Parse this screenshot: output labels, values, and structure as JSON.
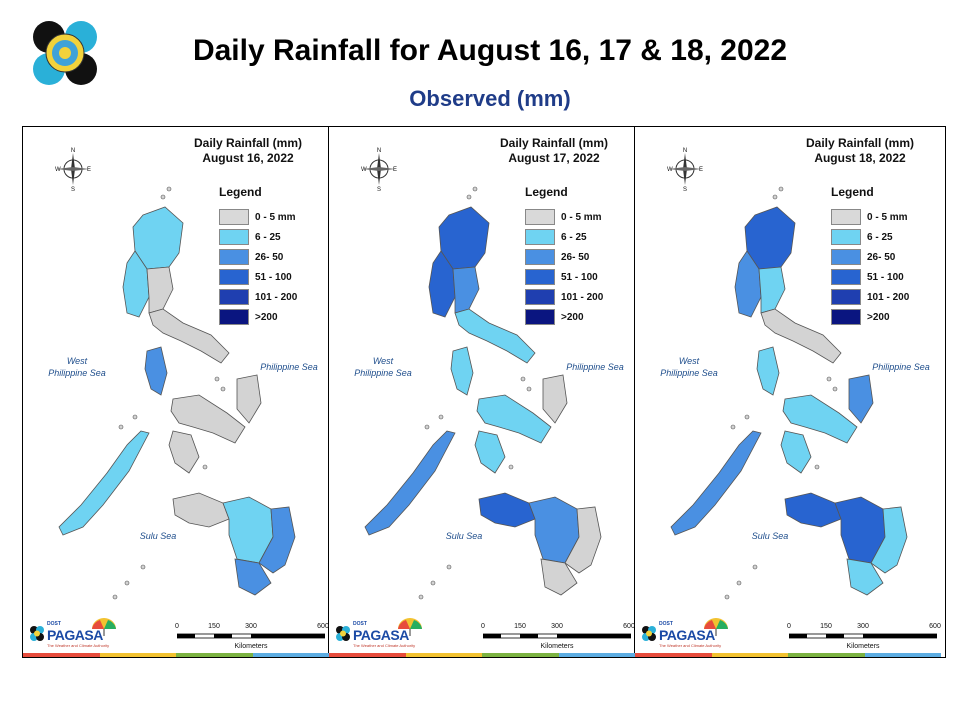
{
  "header": {
    "title": "Daily Rainfall for August 16, 17 & 18, 2022",
    "subtitle": "Observed (mm)"
  },
  "colors": {
    "title": "#000000",
    "subtitle": "#1f3c88",
    "land_default": "#d3d3d3",
    "land_border": "#555555"
  },
  "legend": {
    "title": "Legend",
    "items": [
      {
        "label": "0 - 5 mm",
        "color": "#d9d9d9"
      },
      {
        "label": "6 - 25",
        "color": "#6fd3f2"
      },
      {
        "label": "26- 50",
        "color": "#4a90e2"
      },
      {
        "label": "51 - 100",
        "color": "#2864d0"
      },
      {
        "label": "101 - 200",
        "color": "#1f3fb0"
      },
      {
        "label": ">200",
        "color": "#0a1580"
      }
    ]
  },
  "sea_labels": {
    "west": [
      "West",
      "Philippine Sea"
    ],
    "east": "Philippine Sea",
    "sulu": "Sulu Sea"
  },
  "scale": {
    "ticks": [
      "0",
      "150",
      "300",
      "600"
    ],
    "units": "Kilometers"
  },
  "agency": {
    "prefix": "DOST",
    "name": "PAGASA",
    "tagline": "The Weather and Climate Authority"
  },
  "maps": [
    {
      "line1": "Daily Rainfall (mm)",
      "line2": "August 16, 2022",
      "luzon_north": "#6fd3f2",
      "luzon_central": "#d3d3d3",
      "luzon_west": "#6fd3f2",
      "luzon_south": "#d3d3d3",
      "mindoro": "#4a90e2",
      "palawan": "#6fd3f2",
      "visayas": "#d3d3d3",
      "samar": "#d3d3d3",
      "mindanao_west": "#d3d3d3",
      "mindanao_central": "#6fd3f2",
      "mindanao_east": "#4a90e2"
    },
    {
      "line1": "Daily Rainfall (mm)",
      "line2": "August 17, 2022",
      "luzon_north": "#2864d0",
      "luzon_central": "#4a90e2",
      "luzon_west": "#2864d0",
      "luzon_south": "#6fd3f2",
      "mindoro": "#6fd3f2",
      "palawan": "#4a90e2",
      "visayas": "#6fd3f2",
      "samar": "#d3d3d3",
      "mindanao_west": "#2864d0",
      "mindanao_central": "#4a90e2",
      "mindanao_east": "#d3d3d3"
    },
    {
      "line1": "Daily Rainfall (mm)",
      "line2": "August 18, 2022",
      "luzon_north": "#2864d0",
      "luzon_central": "#6fd3f2",
      "luzon_west": "#4a90e2",
      "luzon_south": "#d3d3d3",
      "mindoro": "#6fd3f2",
      "palawan": "#4a90e2",
      "visayas": "#6fd3f2",
      "samar": "#4a90e2",
      "mindanao_west": "#2864d0",
      "mindanao_central": "#2864d0",
      "mindanao_east": "#6fd3f2"
    }
  ]
}
